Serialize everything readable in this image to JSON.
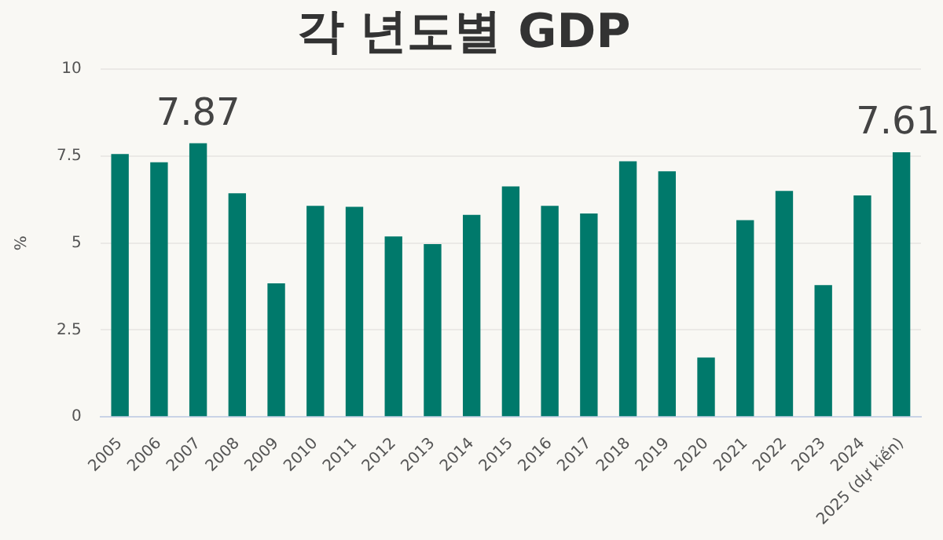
{
  "chart_data": {
    "type": "bar",
    "title": "각 년도별 GDP",
    "ylabel": "%",
    "categories": [
      "2005",
      "2006",
      "2007",
      "2008",
      "2009",
      "2010",
      "2011",
      "2012",
      "2013",
      "2014",
      "2015",
      "2016",
      "2017",
      "2018",
      "2019",
      "2020",
      "2021",
      "2022",
      "2023",
      "2024",
      "2025 (dự kiến)"
    ],
    "values": [
      7.56,
      7.32,
      7.87,
      6.43,
      3.84,
      6.07,
      6.04,
      5.19,
      4.97,
      5.81,
      6.63,
      6.07,
      5.85,
      7.35,
      7.06,
      1.71,
      5.66,
      6.5,
      3.79,
      6.37,
      7.61
    ],
    "value_labels": [
      null,
      null,
      "7.87",
      null,
      null,
      null,
      null,
      null,
      null,
      null,
      null,
      null,
      null,
      null,
      null,
      null,
      null,
      null,
      null,
      null,
      "7.61"
    ],
    "color": "#00796b",
    "ylim": [
      0,
      10
    ],
    "yticks": [
      0,
      2.5,
      5,
      7.5,
      10
    ],
    "grid": "y",
    "legend": false
  }
}
